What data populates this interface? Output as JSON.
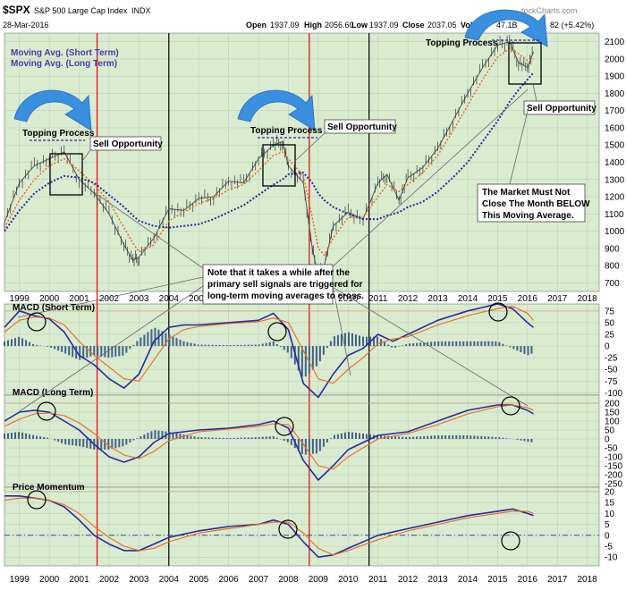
{
  "header": {
    "symbol": "$SPX",
    "name": "S&P 500 Large Cap Index",
    "exchange": "INDX",
    "date": "28-Mar-2016",
    "open_label": "Open",
    "open": "1937.09",
    "high_label": "High",
    "high": "2056.60",
    "low_label": "Low",
    "low": "1937.09",
    "close_label": "Close",
    "close": "2037.05",
    "volume_label": "Volume",
    "volume": "47.1B",
    "change_fragment": "82 (+5.42%)",
    "watermark": "tockCharts.com"
  },
  "legend": {
    "short_ma": "Moving Avg. (Short Term)",
    "long_ma": "Moving Avg. (Long Term)"
  },
  "annotations": {
    "topping": "Topping Process",
    "sell": "Sell Opportunity",
    "note_lines": [
      "Note that it takes a while after the",
      "primary sell signals are triggered for",
      "long-term moving averages to cross."
    ],
    "market_lines": [
      "The Market Must Not",
      "Close The Month BELOW",
      "This Moving Average."
    ]
  },
  "colors": {
    "panel_bg": "#d9ecd0",
    "price": "#555555",
    "short_ma": "#ee6622",
    "long_ma": "#2a2a9a",
    "macd": "#2a2a9a",
    "signal": "#ee6622",
    "histogram": "#41628a",
    "sell_line": "#dd2222",
    "buy_line": "#000000",
    "arrow": "#3a8fe0"
  },
  "chart_data": [
    {
      "type": "line",
      "panel": "price",
      "x": [
        1998.5,
        1999.0,
        1999.5,
        2000.0,
        2000.5,
        2001.0,
        2001.5,
        2002.0,
        2002.5,
        2002.8,
        2003.0,
        2003.5,
        2004.0,
        2004.5,
        2005.0,
        2005.5,
        2006.0,
        2006.5,
        2007.0,
        2007.5,
        2007.8,
        2008.0,
        2008.5,
        2008.8,
        2009.0,
        2009.2,
        2009.5,
        2010.0,
        2010.5,
        2011.0,
        2011.3,
        2011.7,
        2012.0,
        2012.5,
        2013.0,
        2013.5,
        2014.0,
        2014.5,
        2015.0,
        2015.4,
        2015.7,
        2016.0,
        2016.2
      ],
      "series": [
        {
          "name": "$SPX",
          "values": [
            1050,
            1280,
            1380,
            1420,
            1460,
            1300,
            1220,
            1100,
            920,
            830,
            850,
            960,
            1130,
            1120,
            1190,
            1200,
            1290,
            1280,
            1420,
            1500,
            1520,
            1380,
            1280,
            900,
            740,
            800,
            1030,
            1110,
            1070,
            1280,
            1330,
            1180,
            1310,
            1370,
            1480,
            1640,
            1800,
            1950,
            2080,
            2100,
            1980,
            1950,
            2040
          ]
        },
        {
          "name": "Moving Avg. (Short Term)",
          "values": [
            1020,
            1180,
            1300,
            1380,
            1420,
            1350,
            1270,
            1170,
            1020,
            930,
            880,
            920,
            1060,
            1110,
            1160,
            1190,
            1240,
            1270,
            1350,
            1440,
            1460,
            1420,
            1320,
            1080,
            900,
            860,
            960,
            1080,
            1080,
            1200,
            1270,
            1230,
            1270,
            1340,
            1440,
            1580,
            1730,
            1880,
            2010,
            2060,
            2030,
            1990,
            2000
          ]
        },
        {
          "name": "Moving Avg. (Long Term)",
          "values": [
            1000,
            1120,
            1220,
            1280,
            1320,
            1310,
            1280,
            1210,
            1140,
            1090,
            1060,
            1030,
            1020,
            1030,
            1040,
            1070,
            1110,
            1150,
            1210,
            1270,
            1300,
            1330,
            1340,
            1280,
            1220,
            1180,
            1140,
            1100,
            1070,
            1070,
            1090,
            1110,
            1140,
            1170,
            1230,
            1310,
            1400,
            1520,
            1640,
            1750,
            1820,
            1880,
            1920
          ]
        }
      ],
      "ylim": [
        650,
        2150
      ],
      "y_ticks": [
        700,
        800,
        900,
        1000,
        1100,
        1200,
        1300,
        1400,
        1500,
        1600,
        1700,
        1800,
        1900,
        2000,
        2100
      ],
      "x_ticks": [
        1999,
        2000,
        2001,
        2002,
        2003,
        2004,
        2005,
        2006,
        2007,
        2008,
        2009,
        2010,
        2011,
        2012,
        2013,
        2014,
        2015,
        2016,
        2017,
        2018
      ]
    },
    {
      "type": "line",
      "panel": "macd-short",
      "title": "MACD (Short Term)",
      "x": [
        1998.5,
        1999.0,
        1999.5,
        2000.0,
        2000.5,
        2001.0,
        2001.5,
        2002.0,
        2002.5,
        2003.0,
        2003.5,
        2004.0,
        2004.5,
        2005.0,
        2006.0,
        2007.0,
        2007.5,
        2008.0,
        2008.5,
        2009.0,
        2009.5,
        2010.0,
        2010.5,
        2011.0,
        2011.5,
        2012.0,
        2013.0,
        2014.0,
        2015.0,
        2015.5,
        2016.0,
        2016.2
      ],
      "series": [
        {
          "name": "MACD",
          "values": [
            40,
            75,
            65,
            58,
            30,
            -20,
            -40,
            -70,
            -90,
            -60,
            10,
            40,
            45,
            45,
            50,
            55,
            70,
            35,
            -80,
            -110,
            -60,
            -20,
            -5,
            25,
            10,
            25,
            55,
            75,
            90,
            80,
            50,
            40
          ]
        },
        {
          "name": "Signal",
          "values": [
            30,
            55,
            62,
            60,
            45,
            10,
            -20,
            -45,
            -70,
            -75,
            -30,
            15,
            35,
            42,
            48,
            52,
            60,
            50,
            -10,
            -70,
            -80,
            -50,
            -25,
            5,
            15,
            20,
            45,
            65,
            80,
            85,
            70,
            55
          ]
        },
        {
          "name": "Histogram",
          "values": [
            10,
            20,
            3,
            -2,
            -15,
            -30,
            -20,
            -25,
            -20,
            15,
            40,
            25,
            10,
            3,
            2,
            3,
            10,
            -15,
            -70,
            -40,
            20,
            30,
            20,
            20,
            -5,
            5,
            10,
            10,
            10,
            -5,
            -20,
            -15
          ]
        }
      ],
      "ylim": [
        -105,
        90
      ],
      "y_ticks": [
        75,
        50,
        25,
        0,
        -25,
        -50,
        -75,
        -100
      ]
    },
    {
      "type": "line",
      "panel": "macd-long",
      "title": "MACD (Long Term)",
      "x": [
        1998.5,
        1999.0,
        1999.5,
        2000.0,
        2000.5,
        2001.0,
        2001.5,
        2002.0,
        2002.5,
        2003.0,
        2003.5,
        2004.0,
        2005.0,
        2006.0,
        2007.0,
        2007.5,
        2008.0,
        2008.5,
        2009.0,
        2009.5,
        2010.0,
        2011.0,
        2012.0,
        2013.0,
        2014.0,
        2015.0,
        2015.5,
        2016.0,
        2016.2
      ],
      "series": [
        {
          "name": "MACD",
          "values": [
            100,
            150,
            160,
            150,
            100,
            50,
            -30,
            -100,
            -130,
            -100,
            -20,
            30,
            50,
            60,
            80,
            100,
            60,
            -120,
            -230,
            -150,
            -60,
            20,
            40,
            100,
            160,
            190,
            190,
            160,
            140
          ]
        },
        {
          "name": "Signal",
          "values": [
            70,
            110,
            140,
            145,
            130,
            90,
            30,
            -40,
            -90,
            -110,
            -70,
            -10,
            40,
            55,
            70,
            85,
            80,
            -30,
            -150,
            -170,
            -100,
            0,
            30,
            80,
            140,
            180,
            190,
            175,
            160
          ]
        },
        {
          "name": "Histogram",
          "values": [
            30,
            40,
            20,
            5,
            -30,
            -40,
            -60,
            -60,
            -40,
            10,
            50,
            40,
            10,
            5,
            10,
            15,
            -20,
            -90,
            -80,
            20,
            40,
            20,
            10,
            20,
            20,
            10,
            0,
            -15,
            -20
          ]
        }
      ],
      "ylim": [
        -270,
        245
      ],
      "y_ticks": [
        200,
        150,
        100,
        50,
        0,
        -50,
        -100,
        -150,
        -200,
        -250
      ]
    },
    {
      "type": "line",
      "panel": "momentum",
      "title": "Price Momentum",
      "x": [
        1998.5,
        1999.0,
        1999.5,
        2000.0,
        2000.5,
        2001.0,
        2001.5,
        2002.0,
        2002.5,
        2003.0,
        2003.5,
        2004.0,
        2005.0,
        2006.0,
        2007.0,
        2007.5,
        2008.0,
        2008.5,
        2009.0,
        2009.5,
        2010.0,
        2011.0,
        2012.0,
        2013.0,
        2014.0,
        2015.0,
        2015.5,
        2016.0,
        2016.2
      ],
      "series": [
        {
          "name": "Momentum",
          "values": [
            18,
            18,
            17,
            16,
            13,
            7,
            0,
            -4,
            -7,
            -7,
            -4,
            -1,
            2,
            4,
            5,
            7,
            5,
            -3,
            -10,
            -9,
            -6,
            0,
            3,
            6,
            9,
            11,
            12,
            10,
            9
          ]
        },
        {
          "name": "Smoothed",
          "values": [
            16,
            17,
            17,
            16,
            14,
            10,
            4,
            -1,
            -5,
            -7,
            -6,
            -3,
            1,
            3,
            5,
            6,
            6,
            1,
            -6,
            -9,
            -7,
            -2,
            2,
            5,
            8,
            10,
            11,
            11,
            10
          ]
        }
      ],
      "ylim": [
        -14,
        22
      ],
      "y_ticks": [
        20,
        15,
        10,
        5,
        0,
        -5,
        -10
      ]
    }
  ],
  "sell_lines_x": [
    2001.6,
    2008.7
  ],
  "buy_lines_x": [
    2004.0,
    2010.7
  ]
}
